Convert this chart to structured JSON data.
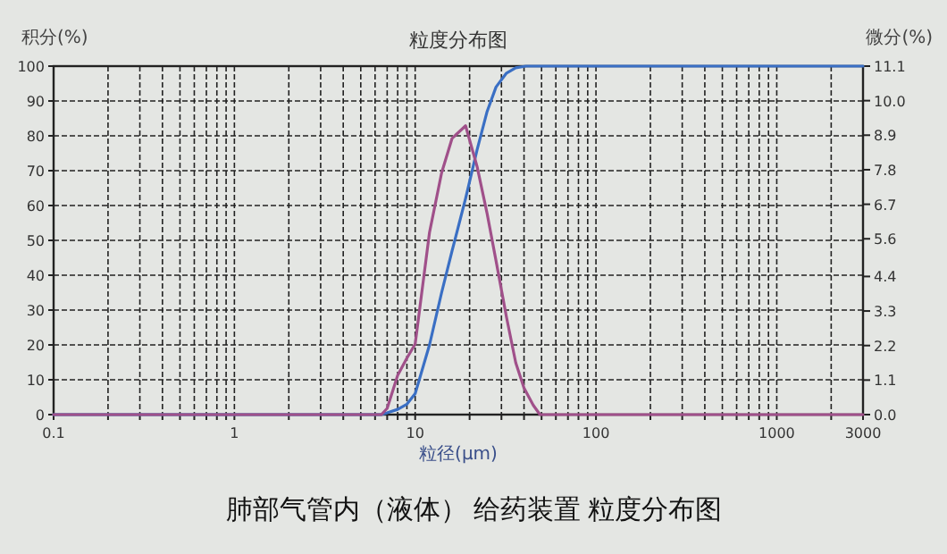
{
  "chart_data": {
    "type": "line",
    "title": "粒度分布图",
    "xlabel": "粒径(μm)",
    "ylabel": "积分(%)",
    "y2label": "微分(%)",
    "annotations": [
      "肺部气管内（液体） 给药装置 粒度分布图"
    ],
    "log": "x",
    "grid": true,
    "xlim": [
      0.1,
      3000
    ],
    "xticks": [
      {
        "value": 0.1,
        "label": "0.1"
      },
      {
        "value": 0.2,
        "label": null
      },
      {
        "value": 0.3,
        "label": null
      },
      {
        "value": 0.4,
        "label": null
      },
      {
        "value": 0.5,
        "label": null
      },
      {
        "value": 0.6,
        "label": null
      },
      {
        "value": 0.7,
        "label": null
      },
      {
        "value": 0.8,
        "label": null
      },
      {
        "value": 0.9,
        "label": null
      },
      1,
      {
        "value": 2,
        "label": null
      },
      {
        "value": 3,
        "label": null
      },
      {
        "value": 4,
        "label": null
      },
      {
        "value": 5,
        "label": null
      },
      {
        "value": 6,
        "label": null
      },
      {
        "value": 7,
        "label": null
      },
      {
        "value": 8,
        "label": null
      },
      {
        "value": 9,
        "label": null
      },
      10,
      {
        "value": 20,
        "label": null
      },
      {
        "value": 30,
        "label": null
      },
      {
        "value": 40,
        "label": null
      },
      {
        "value": 50,
        "label": null
      },
      {
        "value": 60,
        "label": null
      },
      {
        "value": 70,
        "label": null
      },
      {
        "value": 80,
        "label": null
      },
      {
        "value": 90,
        "label": null
      },
      100,
      {
        "value": 200,
        "label": null
      },
      {
        "value": 300,
        "label": null
      },
      {
        "value": 400,
        "label": null
      },
      {
        "value": 500,
        "label": null
      },
      {
        "value": 600,
        "label": null
      },
      {
        "value": 700,
        "label": null
      },
      {
        "value": 800,
        "label": null
      },
      {
        "value": 900,
        "label": null
      },
      1000,
      {
        "value": 2000,
        "label": null
      },
      3000
    ],
    "ylim": [
      0,
      100
    ],
    "yticks": [
      0,
      10,
      20,
      30,
      40,
      50,
      60,
      70,
      80,
      90,
      100
    ],
    "y2lim": [
      0,
      11.1
    ],
    "y2ticks": [
      {
        "value": 0,
        "label": "0.0"
      },
      1.1,
      2.2,
      3.3,
      4.4,
      5.6,
      6.7,
      7.8,
      8.9,
      {
        "value": 10,
        "label": "10.0"
      },
      11.1
    ],
    "series": [
      {
        "color": "#3a6fc4",
        "x": [
          0.1,
          6.5,
          7,
          8,
          9,
          10,
          12,
          14,
          16,
          19,
          22,
          25,
          28,
          32,
          36,
          41,
          3000
        ],
        "values": [
          0,
          0,
          0.5,
          1.5,
          3,
          6,
          20,
          35,
          47,
          62,
          76,
          87,
          94,
          98,
          99.5,
          100,
          100
        ]
      },
      {
        "color": "#a0508a",
        "axis": "y2",
        "x": [
          0.1,
          6.5,
          7,
          8,
          9,
          10,
          12,
          14,
          16,
          19,
          22,
          25,
          28,
          32,
          36,
          40,
          45,
          49,
          3000
        ],
        "values": [
          0,
          0,
          0.2,
          1.25,
          1.8,
          2.25,
          5.8,
          7.7,
          8.8,
          9.2,
          7.9,
          6.4,
          4.9,
          3.1,
          1.65,
          0.85,
          0.3,
          0,
          0
        ]
      }
    ]
  }
}
